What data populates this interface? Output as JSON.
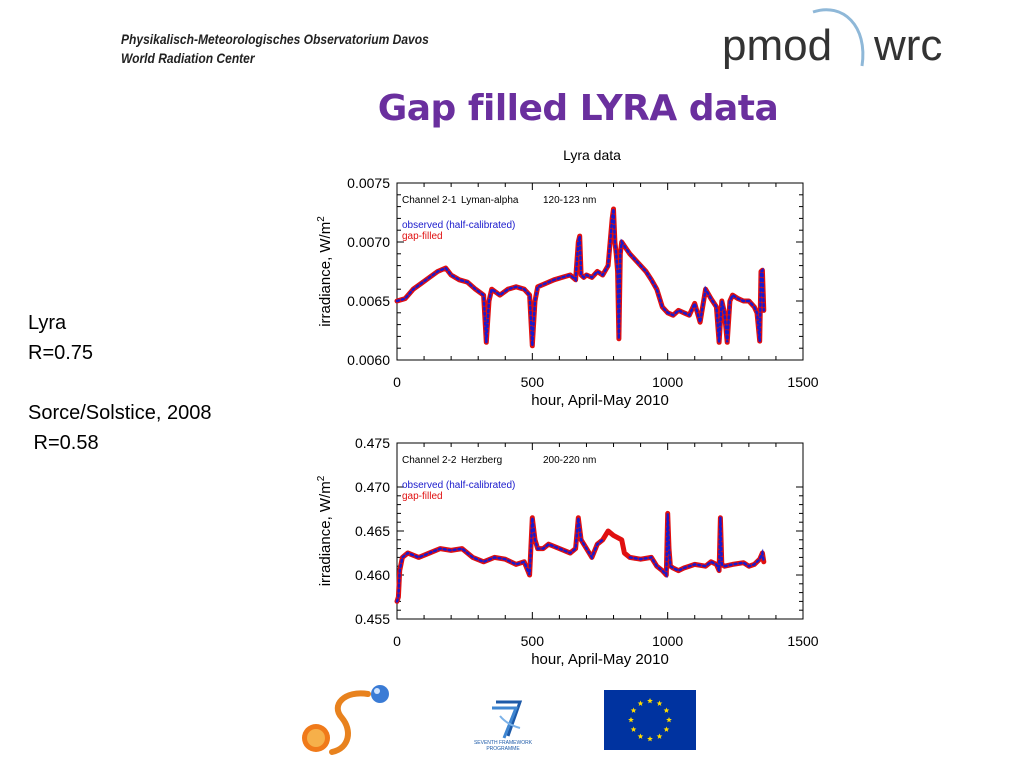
{
  "header": {
    "institute_line1": "Physikalisch-Meteorologisches Observatorium Davos",
    "institute_line2": "World Radiation Center",
    "logo_text_left": "pmod",
    "logo_text_right": "wrc"
  },
  "slide": {
    "title": "Gap filled LYRA data",
    "figure_title": "Lyra data"
  },
  "side_text": {
    "line1": "Lyra",
    "line2": "R=0.75",
    "line3": "Sorce/Solstice, 2008",
    "line4": " R=0.58"
  },
  "footer": {
    "fp7_text_line1": "SEVENTH FRAMEWORK",
    "fp7_text_line2": "PROGRAMME"
  },
  "colors": {
    "title": "#6a2f9e",
    "observed": "#1a1acc",
    "gap_filled": "#e01010",
    "eu_blue": "#0033a0",
    "eu_star": "#ffdd00"
  },
  "chart_data": [
    {
      "type": "line",
      "channel": "Channel 2-1",
      "band": "Lyman-alpha",
      "wavelength": "120-123 nm",
      "xlabel": "hour, April-May 2010",
      "ylabel": "irradiance, W/m",
      "ylabel_sup": "2",
      "xlim": [
        0,
        1500
      ],
      "ylim": [
        0.006,
        0.0075
      ],
      "xticks": [
        0,
        500,
        1000,
        1500
      ],
      "yticks": [
        "0.0060",
        "0.0065",
        "0.0070",
        "0.0075"
      ],
      "ytick_values": [
        0.006,
        0.0065,
        0.007,
        0.0075
      ],
      "legend": [
        "observed (half-calibrated)",
        "gap-filled"
      ],
      "series": [
        {
          "name": "gap-filled",
          "x": [
            0,
            30,
            60,
            90,
            120,
            150,
            180,
            200,
            230,
            260,
            290,
            320,
            330,
            340,
            350,
            380,
            410,
            440,
            470,
            490,
            500,
            510,
            520,
            550,
            580,
            610,
            640,
            660,
            670,
            675,
            680,
            690,
            700,
            720,
            740,
            760,
            780,
            795,
            800,
            805,
            810,
            815,
            820,
            825,
            830,
            845,
            860,
            880,
            900,
            920,
            940,
            960,
            980,
            1000,
            1020,
            1040,
            1060,
            1080,
            1100,
            1120,
            1140,
            1160,
            1180,
            1190,
            1200,
            1210,
            1220,
            1230,
            1240,
            1260,
            1280,
            1300,
            1320,
            1330,
            1340,
            1345,
            1350,
            1355
          ],
          "values": [
            0.0065,
            0.00652,
            0.0066,
            0.00665,
            0.0067,
            0.00675,
            0.00678,
            0.00672,
            0.00668,
            0.00666,
            0.0066,
            0.00655,
            0.00615,
            0.0065,
            0.0066,
            0.00655,
            0.0066,
            0.00662,
            0.0066,
            0.00655,
            0.00612,
            0.0065,
            0.00662,
            0.00665,
            0.00668,
            0.0067,
            0.00672,
            0.00668,
            0.007,
            0.00705,
            0.00672,
            0.0067,
            0.00672,
            0.0067,
            0.00675,
            0.00672,
            0.0068,
            0.0072,
            0.00728,
            0.007,
            0.0069,
            0.00675,
            0.00618,
            0.0069,
            0.007,
            0.00695,
            0.0069,
            0.00685,
            0.0068,
            0.00675,
            0.00668,
            0.0066,
            0.00645,
            0.0064,
            0.00638,
            0.00642,
            0.0064,
            0.00638,
            0.00648,
            0.00632,
            0.0066,
            0.00652,
            0.00645,
            0.00615,
            0.0065,
            0.0064,
            0.00615,
            0.0065,
            0.00655,
            0.00652,
            0.0065,
            0.0065,
            0.00645,
            0.0064,
            0.00616,
            0.00675,
            0.00676,
            0.00642
          ]
        },
        {
          "name": "observed (half-calibrated)",
          "x": [
            0,
            30,
            60,
            90,
            120,
            150,
            180,
            200,
            230,
            260,
            290,
            320,
            330,
            340,
            350,
            380,
            410,
            440,
            470,
            490,
            500,
            510,
            520,
            550,
            580,
            610,
            640,
            660,
            670,
            675,
            680,
            690,
            700,
            720,
            740,
            760,
            780,
            795,
            800,
            805,
            810,
            815,
            820,
            825,
            830,
            845,
            860,
            880,
            900,
            920,
            940,
            960,
            980,
            1000,
            1020,
            1040,
            1060,
            1080,
            1100,
            1120,
            1140,
            1160,
            1180,
            1190,
            1200,
            1210,
            1220,
            1230,
            1240,
            1260,
            1280,
            1300,
            1320,
            1330,
            1340,
            1345,
            1350,
            1355
          ],
          "values": [
            0.0065,
            0.00652,
            0.0066,
            0.00665,
            0.0067,
            0.00675,
            0.00678,
            0.00672,
            0.00668,
            0.00666,
            0.0066,
            0.00655,
            0.00615,
            0.0065,
            0.0066,
            0.00655,
            0.0066,
            0.00662,
            0.0066,
            0.00655,
            0.00612,
            0.0065,
            0.00662,
            0.00665,
            0.00668,
            0.0067,
            0.00672,
            0.00668,
            0.007,
            0.00705,
            0.00672,
            0.0067,
            0.00672,
            0.0067,
            0.00675,
            0.00672,
            0.0068,
            0.0072,
            0.00728,
            0.007,
            0.0069,
            0.00675,
            0.00618,
            0.0069,
            0.007,
            0.00695,
            0.0069,
            0.00685,
            0.0068,
            0.00675,
            0.00668,
            0.0066,
            0.00645,
            0.0064,
            0.00638,
            0.00642,
            0.0064,
            0.00638,
            0.00648,
            0.00632,
            0.0066,
            0.00652,
            0.00645,
            0.00615,
            0.0065,
            0.0064,
            0.00615,
            0.0065,
            0.00655,
            0.00652,
            0.0065,
            0.0065,
            0.00645,
            0.0064,
            0.00616,
            0.00675,
            0.00676,
            0.00642
          ]
        }
      ]
    },
    {
      "type": "line",
      "channel": "Channel 2-2",
      "band": "Herzberg",
      "wavelength": "200-220 nm",
      "xlabel": "hour, April-May 2010",
      "ylabel": "irradiance, W/m",
      "ylabel_sup": "2",
      "xlim": [
        0,
        1500
      ],
      "ylim": [
        0.455,
        0.475
      ],
      "xticks": [
        0,
        500,
        1000,
        1500
      ],
      "yticks": [
        "0.455",
        "0.460",
        "0.465",
        "0.470",
        "0.475"
      ],
      "ytick_values": [
        0.455,
        0.46,
        0.465,
        0.47,
        0.475
      ],
      "legend": [
        "observed (half-calibrated)",
        "gap-filled"
      ],
      "series": [
        {
          "name": "gap-filled",
          "x": [
            0,
            5,
            10,
            20,
            40,
            80,
            120,
            160,
            200,
            240,
            280,
            320,
            360,
            400,
            440,
            470,
            490,
            500,
            510,
            520,
            540,
            560,
            600,
            640,
            660,
            670,
            680,
            700,
            720,
            740,
            760,
            780,
            800,
            830,
            840,
            860,
            900,
            940,
            960,
            980,
            995,
            1000,
            1005,
            1010,
            1020,
            1040,
            1060,
            1080,
            1100,
            1140,
            1160,
            1180,
            1190,
            1195,
            1200,
            1210,
            1240,
            1280,
            1300,
            1320,
            1340,
            1350,
            1355
          ],
          "values": [
            0.457,
            0.4575,
            0.4605,
            0.462,
            0.4625,
            0.462,
            0.4625,
            0.463,
            0.4628,
            0.463,
            0.462,
            0.4615,
            0.462,
            0.4618,
            0.4612,
            0.4615,
            0.46,
            0.4665,
            0.464,
            0.463,
            0.463,
            0.4635,
            0.463,
            0.4625,
            0.463,
            0.4665,
            0.464,
            0.463,
            0.462,
            0.4635,
            0.464,
            0.465,
            0.4645,
            0.464,
            0.4625,
            0.462,
            0.4618,
            0.462,
            0.461,
            0.4605,
            0.46,
            0.467,
            0.463,
            0.461,
            0.4608,
            0.4605,
            0.4608,
            0.461,
            0.4612,
            0.461,
            0.4615,
            0.4612,
            0.4605,
            0.4665,
            0.4612,
            0.461,
            0.4612,
            0.4614,
            0.461,
            0.4612,
            0.4618,
            0.4625,
            0.4615
          ]
        },
        {
          "name": "observed (half-calibrated)",
          "x": [
            0,
            5,
            10,
            20,
            40,
            80,
            120,
            160,
            200,
            240,
            280,
            320,
            360,
            400,
            440,
            470,
            490,
            500,
            510,
            520,
            540,
            560,
            600,
            640,
            660,
            670,
            680,
            700,
            720,
            740,
            760,
            860,
            900,
            940,
            960,
            980,
            995,
            1000,
            1005,
            1010,
            1020,
            1040,
            1060,
            1080,
            1100,
            1140,
            1160,
            1180,
            1190,
            1195,
            1200,
            1210,
            1240,
            1280,
            1300,
            1320,
            1340,
            1350,
            1355
          ],
          "values": [
            0.457,
            0.4575,
            0.4605,
            0.462,
            0.4625,
            0.462,
            0.4625,
            0.463,
            0.4628,
            0.463,
            0.462,
            0.4615,
            0.462,
            0.4618,
            0.4612,
            0.4615,
            0.46,
            0.4665,
            0.464,
            0.463,
            0.463,
            0.4635,
            0.463,
            0.4625,
            0.463,
            0.4665,
            0.464,
            0.463,
            0.462,
            0.4635,
            0.464,
            0.462,
            0.4618,
            0.462,
            0.461,
            0.4605,
            0.46,
            0.467,
            0.463,
            0.461,
            0.4608,
            0.4605,
            0.4608,
            0.461,
            0.4612,
            0.461,
            0.4615,
            0.4612,
            0.4605,
            0.4665,
            0.4612,
            0.461,
            0.4612,
            0.4614,
            0.461,
            0.4612,
            0.4618,
            0.4625,
            0.4615
          ]
        }
      ]
    }
  ]
}
